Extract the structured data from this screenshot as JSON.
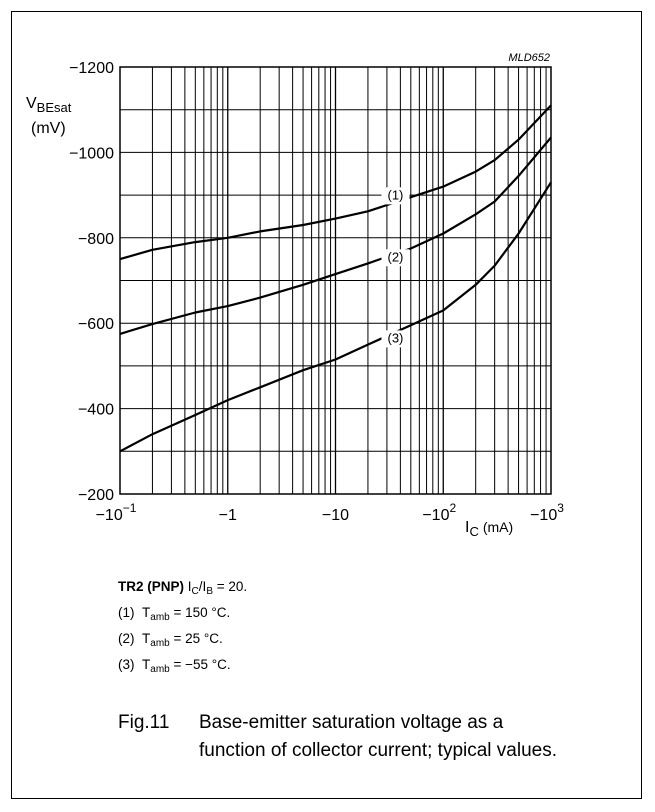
{
  "figure_code": "MLD652",
  "chart_data": {
    "type": "line",
    "x_scale": "log",
    "xlim": [
      -0.1,
      -1000
    ],
    "ylim": [
      -200,
      -1200
    ],
    "y_ticks": [
      -1200,
      -1000,
      -800,
      -600,
      -400,
      -200
    ],
    "y_tick_labels": [
      "−1200",
      "−1000",
      "−800",
      "−600",
      "−400",
      "−200"
    ],
    "x_ticks": [
      -0.1,
      -1,
      -10,
      -100,
      -1000
    ],
    "x_tick_labels": [
      {
        "base": "−10",
        "exp": "−1"
      },
      {
        "base": "−1",
        "exp": ""
      },
      {
        "base": "−10",
        "exp": ""
      },
      {
        "base": "−10",
        "exp": "2"
      },
      {
        "base": "−10",
        "exp": "3"
      }
    ],
    "ylabel": {
      "main": "V",
      "sub": "BEsat",
      "unit": "(mV)"
    },
    "xlabel": {
      "main": "I",
      "sub": "C",
      "unit": "(mA)"
    },
    "grid": true,
    "series": [
      {
        "name": "(1)",
        "label_at": {
          "x": -36,
          "y": -890
        },
        "points": [
          [
            -0.1,
            -750
          ],
          [
            -0.2,
            -772
          ],
          [
            -0.5,
            -790
          ],
          [
            -1,
            -800
          ],
          [
            -2,
            -815
          ],
          [
            -5,
            -830
          ],
          [
            -10,
            -845
          ],
          [
            -20,
            -862
          ],
          [
            -50,
            -895
          ],
          [
            -100,
            -920
          ],
          [
            -200,
            -955
          ],
          [
            -300,
            -982
          ],
          [
            -500,
            -1030
          ],
          [
            -1000,
            -1110
          ]
        ]
      },
      {
        "name": "(2)",
        "label_at": {
          "x": -36,
          "y": -745
        },
        "points": [
          [
            -0.1,
            -575
          ],
          [
            -0.2,
            -598
          ],
          [
            -0.5,
            -625
          ],
          [
            -1,
            -640
          ],
          [
            -2,
            -660
          ],
          [
            -5,
            -690
          ],
          [
            -10,
            -715
          ],
          [
            -20,
            -740
          ],
          [
            -50,
            -775
          ],
          [
            -100,
            -810
          ],
          [
            -200,
            -855
          ],
          [
            -300,
            -885
          ],
          [
            -500,
            -945
          ],
          [
            -1000,
            -1035
          ]
        ]
      },
      {
        "name": "(3)",
        "label_at": {
          "x": -36,
          "y": -555
        },
        "points": [
          [
            -0.1,
            -300
          ],
          [
            -0.2,
            -340
          ],
          [
            -0.5,
            -385
          ],
          [
            -1,
            -420
          ],
          [
            -2,
            -450
          ],
          [
            -5,
            -490
          ],
          [
            -10,
            -515
          ],
          [
            -20,
            -550
          ],
          [
            -50,
            -595
          ],
          [
            -100,
            -630
          ],
          [
            -200,
            -690
          ],
          [
            -300,
            -735
          ],
          [
            -500,
            -810
          ],
          [
            -1000,
            -930
          ]
        ]
      }
    ]
  },
  "conditions": {
    "device": "TR2 (PNP)",
    "ratio": {
      "a": "I",
      "a_sub": "C",
      "sep": "/",
      "b": "I",
      "b_sub": "B",
      "value": " = 20."
    },
    "lines": [
      {
        "num": "(1)",
        "sym": "T",
        "sub": "amb",
        "value": " = 150 °C."
      },
      {
        "num": "(2)",
        "sym": "T",
        "sub": "amb",
        "value": " = 25 °C."
      },
      {
        "num": "(3)",
        "sym": "T",
        "sub": "amb",
        "value": " = −55 °C."
      }
    ]
  },
  "caption": {
    "number": "Fig.11",
    "line1": "Base-emitter saturation voltage as a",
    "line2": "function of collector current; typical values."
  }
}
